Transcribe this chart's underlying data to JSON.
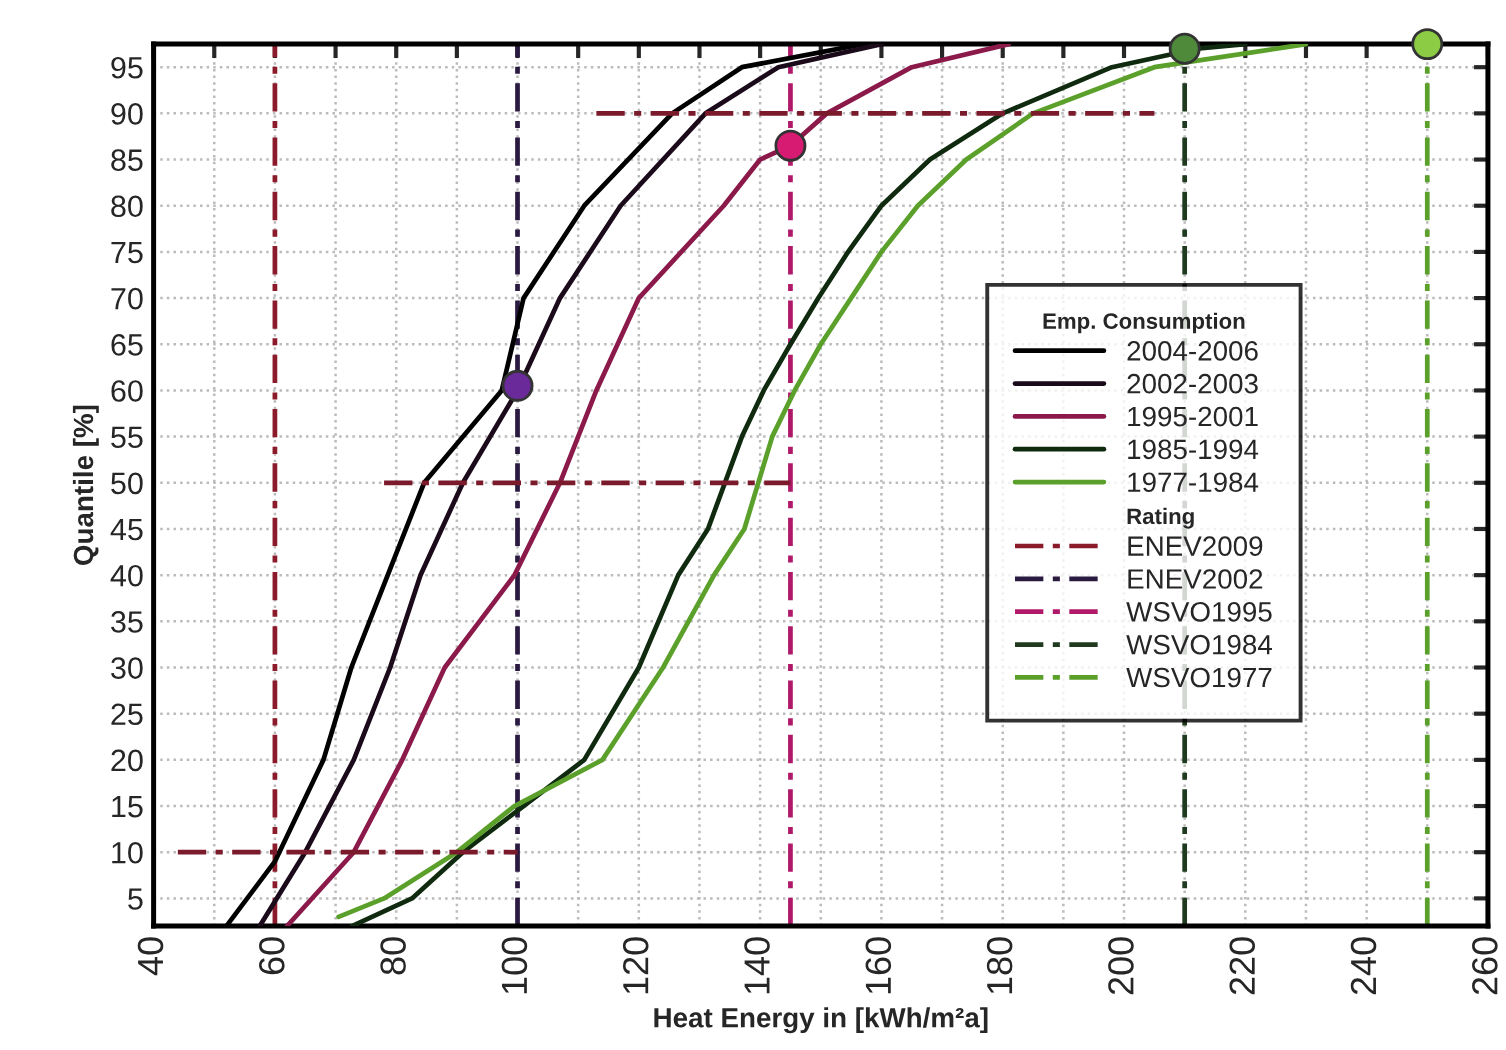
{
  "chart_data": {
    "type": "line",
    "xlabel": "Heat Energy in [kWh/m²a]",
    "ylabel": "Quantile [%]",
    "legend_title": "Emp. Consumption",
    "annotations": [
      "Rating"
    ],
    "xlim": [
      40,
      260
    ],
    "ylim": [
      2,
      97.5
    ],
    "xticks": [
      40,
      {
        "value": 50,
        "label": null
      },
      60,
      {
        "value": 70,
        "label": null
      },
      80,
      {
        "value": 90,
        "label": null
      },
      100,
      {
        "value": 110,
        "label": null
      },
      120,
      {
        "value": 130,
        "label": null
      },
      140,
      {
        "value": 150,
        "label": null
      },
      160,
      {
        "value": 170,
        "label": null
      },
      180,
      {
        "value": 190,
        "label": null
      },
      200,
      {
        "value": 210,
        "label": null
      },
      220,
      {
        "value": 230,
        "label": null
      },
      240,
      {
        "value": 250,
        "label": null
      },
      260
    ],
    "yticks": [
      5,
      10,
      15,
      20,
      25,
      30,
      35,
      40,
      45,
      50,
      55,
      60,
      65,
      70,
      75,
      80,
      85,
      90,
      95
    ],
    "grid": true,
    "legend": "right",
    "marker": "none",
    "line_style": "solid",
    "series": [
      {
        "name": "2004-2006",
        "color": "#000000",
        "x": [
          52,
          60,
          68,
          72.6,
          78.6,
          84.6,
          97.4,
          101,
          111,
          125.5,
          137,
          157
        ],
        "values": [
          2,
          9,
          20,
          30,
          40,
          50,
          60,
          70,
          80,
          90,
          95,
          97.5
        ]
      },
      {
        "name": "2002-2003",
        "color": "#1a0a1a",
        "x": [
          57.5,
          65,
          73,
          79,
          84,
          91,
          100,
          107,
          117,
          131,
          143,
          160
        ],
        "values": [
          2,
          10,
          20,
          30,
          40,
          50,
          60,
          70,
          80,
          90,
          95,
          97.5
        ]
      },
      {
        "name": "1995-2001",
        "color": "#8b1a4a",
        "x": [
          62,
          73,
          81,
          88,
          99.5,
          107,
          113,
          120,
          134,
          140,
          145,
          151,
          165,
          181
        ],
        "values": [
          2,
          10,
          20,
          30,
          40,
          50,
          60,
          70,
          80,
          85,
          86.5,
          90,
          95,
          97.5
        ]
      },
      {
        "name": "1985-1994",
        "color": "#0f2a0f",
        "x": [
          72.7,
          82.6,
          91,
          101,
          111,
          120,
          126.5,
          131.4,
          137,
          140.6,
          145,
          149.6,
          154.5,
          160,
          168,
          180,
          198,
          212,
          220
        ],
        "values": [
          2,
          5,
          10,
          15,
          20,
          30,
          40,
          45,
          55,
          60,
          65,
          70,
          75,
          80,
          85,
          90,
          95,
          97,
          97.5
        ]
      },
      {
        "name": "1977-1984",
        "color": "#5aa02a",
        "x": [
          70.5,
          78,
          90,
          99.5,
          114,
          124,
          132.4,
          137.4,
          142,
          145.7,
          150,
          155,
          160,
          166,
          174,
          185,
          205,
          230
        ],
        "values": [
          3,
          5,
          10,
          15,
          20,
          30,
          40,
          45,
          55,
          60,
          65,
          70,
          75,
          80,
          85,
          90,
          95,
          97.5
        ]
      },
      {
        "type": "line",
        "line_style": "dashed",
        "color": "#7a1a2a",
        "x": [
          44,
          100
        ],
        "values": [
          10,
          10
        ]
      },
      {
        "type": "line",
        "line_style": "dashed",
        "color": "#7a1a2a",
        "x": [
          78,
          145
        ],
        "values": [
          50,
          50
        ]
      },
      {
        "type": "line",
        "line_style": "dashed",
        "color": "#7a1a2a",
        "x": [
          113,
          205
        ],
        "values": [
          90,
          90
        ]
      },
      {
        "name": "ENEV2009",
        "line_style": "dashed",
        "color": "#8b1a2a",
        "x": [
          60,
          60
        ],
        "values": [
          2,
          97.5
        ]
      },
      {
        "name": "ENEV2002",
        "line_style": "dashed",
        "color": "#2a1a40",
        "x": [
          100,
          100
        ],
        "values": [
          2,
          97.5
        ]
      },
      {
        "name": "WSVO1995",
        "line_style": "dashed",
        "color": "#b0186a",
        "x": [
          145,
          145
        ],
        "values": [
          2,
          97.5
        ]
      },
      {
        "name": "WSVO1984",
        "line_style": "dashed",
        "color": "#1f3a1f",
        "x": [
          210,
          210
        ],
        "values": [
          2,
          97.5
        ]
      },
      {
        "name": "WSVO1977",
        "line_style": "dashed",
        "color": "#5aa02a",
        "x": [
          250,
          250
        ],
        "values": [
          2,
          97.5
        ]
      },
      {
        "type": "scatter",
        "marker": "circle",
        "x": [
          100,
          145,
          210,
          250
        ],
        "values": [
          60.5,
          86.5,
          97,
          97.5
        ],
        "colors": [
          "#6a2a9a",
          "#d81b72",
          "#4e8a3a",
          "#8ccc44"
        ]
      }
    ]
  }
}
